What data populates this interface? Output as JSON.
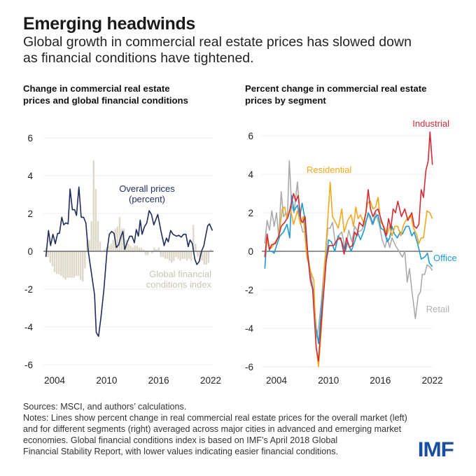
{
  "header": {
    "title": "Emerging headwinds",
    "subtitle_lines": [
      "Global growth in commercial real estate prices has slowed down",
      "as financial conditions have tightened."
    ]
  },
  "footer": {
    "lines": [
      "Sources: MSCI, and authors’ calculations.",
      "Notes: Lines show percent change in real commercial real estate prices for the overall market (left)",
      "and for different segments (right) averaged across major cities in advanced and emerging market",
      "economies. Global financial conditions index is based on IMF’s April 2018 Global",
      "Financial Stability Report, with lower values indicating easier financial conditions."
    ],
    "logo": "IMF"
  },
  "chart_data": [
    {
      "type": "bar+line",
      "title_lines": [
        "Change in commercial real estate",
        "prices and global financial conditions"
      ],
      "xticks": [
        "2004",
        "2010",
        "2016",
        "2022"
      ],
      "yticks": [
        "6",
        "4",
        "2",
        "0",
        "-2",
        "-4",
        "-6"
      ],
      "ylim": [
        -6,
        6
      ],
      "grid": true,
      "series": [
        {
          "name": "Global financial conditions index",
          "kind": "bar",
          "color": "#ddd8c8",
          "x_start": 2003.0,
          "frequency": "quarterly",
          "values": [
            0.2,
            -0.3,
            -0.6,
            -0.8,
            -1.1,
            -1.2,
            -1.2,
            -1.3,
            -1.4,
            -1.5,
            -1.4,
            -1.4,
            -1.4,
            -1.4,
            -1.3,
            -1.3,
            -1.5,
            -1.6,
            -0.9,
            0.6,
            0.6,
            1.6,
            4.8,
            3.3,
            1.6,
            0.5,
            0.0,
            0.1,
            0.2,
            0.3,
            0.4,
            0.6,
            1.2,
            1.3,
            1.8,
            1.2,
            1.2,
            0.6,
            0.4,
            0.3,
            0.2,
            0.3,
            0.3,
            0.2,
            0.2,
            0.1,
            -0.2,
            -0.2,
            0.0,
            -0.1,
            0.2,
            0.1,
            0.2,
            -0.3,
            -0.3,
            -0.4,
            -0.4,
            -0.5,
            -0.6,
            -0.5,
            -0.3,
            -0.4,
            -0.5,
            -0.4,
            -0.4,
            -0.5,
            -0.4,
            -0.5,
            1.4,
            0.4,
            -0.3,
            -0.5,
            -0.5,
            -0.7,
            -0.7,
            -0.6,
            0.1
          ]
        },
        {
          "name": "Overall prices (percent)",
          "label_lines": [
            "Overall prices",
            "(percent)"
          ],
          "kind": "line",
          "color": "#1f2d5c",
          "x": [
            2003.0,
            2003.3,
            2003.54,
            2003.81,
            2004.08,
            2004.35,
            2004.56,
            2004.83,
            2005.05,
            2005.29,
            2005.56,
            2005.78,
            2006.05,
            2006.32,
            2006.53,
            2006.8,
            2007.07,
            2007.34,
            2007.61,
            2007.88,
            2008.2,
            2008.61,
            2008.8,
            2009.07,
            2009.34,
            2009.69,
            2010.04,
            2010.31,
            2010.58,
            2010.85,
            2011.12,
            2011.39,
            2011.66,
            2011.88,
            2012.09,
            2012.39,
            2012.66,
            2012.93,
            2013.2,
            2013.42,
            2013.66,
            2013.87,
            2014.09,
            2014.36,
            2014.63,
            2014.9,
            2015.17,
            2015.44,
            2015.9,
            2016.25,
            2016.63,
            2016.9,
            2017.11,
            2017.38,
            2017.65,
            2018.06,
            2018.33,
            2018.6,
            2018.87,
            2019.14,
            2019.41,
            2019.62,
            2019.89,
            2020.16,
            2020.4,
            2020.67,
            2020.94,
            2021.21,
            2021.43,
            2021.65,
            2021.86,
            2022.19
          ],
          "y": [
            -0.3,
            1.1,
            0.3,
            0.9,
            0.4,
            0.95,
            0.95,
            1.8,
            1.4,
            1.5,
            1.45,
            3.3,
            2.2,
            2.2,
            1.9,
            3.4,
            1.8,
            1.8,
            1.5,
            0,
            -1,
            -2.3,
            -4.3,
            -4.5,
            -3.5,
            -2,
            0,
            0.9,
            1.05,
            0.95,
            0.2,
            0.35,
            0.8,
            1.05,
            0.1,
            0.5,
            0.8,
            0.8,
            0.45,
            1.15,
            0.8,
            1.65,
            0.9,
            1.3,
            1.5,
            2.15,
            1.95,
            1.4,
            1.95,
            1.1,
            0.3,
            0.7,
            0.5,
            1.1,
            0.9,
            0.8,
            0.85,
            0.75,
            0.9,
            0.9,
            0.25,
            0.6,
            0.4,
            -0.4,
            -0.7,
            -0.55,
            0,
            0.3,
            0.85,
            1.35,
            1.45,
            1.1
          ]
        }
      ],
      "index_label_lines": [
        "Global financial",
        "conditions index"
      ]
    },
    {
      "type": "line",
      "title_lines": [
        "Percent change in commercial real estate",
        "prices by segment"
      ],
      "xticks": [
        "2004",
        "2010",
        "2016",
        "2022"
      ],
      "yticks": [
        "6",
        "4",
        "2",
        "0",
        "-2",
        "-4",
        "-6"
      ],
      "ylim": [
        -6,
        6
      ],
      "grid": true,
      "series": [
        {
          "name": "Retail",
          "color": "#aaaaaa",
          "x": [
            2003.0,
            2003.27,
            2003.54,
            2003.81,
            2004.08,
            2004.35,
            2004.62,
            2004.89,
            2005.16,
            2005.43,
            2005.61,
            2005.83,
            2006.1,
            2006.37,
            2006.77,
            2007.12,
            2007.39,
            2007.66,
            2007.99,
            2008.26,
            2008.58,
            2008.93,
            2009.2,
            2009.55,
            2009.93,
            2010.28,
            2010.55,
            2010.82,
            2011.17,
            2011.49,
            2011.89,
            2012.3,
            2012.7,
            2013.05,
            2013.38,
            2013.78,
            2014.19,
            2014.59,
            2014.99,
            2015.4,
            2015.8,
            2016.21,
            2016.56,
            2016.88,
            2017.15,
            2017.42,
            2017.69,
            2018.09,
            2018.5,
            2018.9,
            2019.17,
            2019.44,
            2019.71,
            2019.98,
            2020.39,
            2020.71,
            2020.98,
            2021.19,
            2021.46,
            2021.73,
            2022.06,
            2022.35
          ],
          "y": [
            0.4,
            1.6,
            1.1,
            2.1,
            1.3,
            2.0,
            0.7,
            3.1,
            1.8,
            2.0,
            1.8,
            4.7,
            2.4,
            2.0,
            3.6,
            1.5,
            1.0,
            1.0,
            -0.2,
            -1.0,
            -2.0,
            -4.5,
            -4.0,
            -2.5,
            -0.5,
            1.2,
            1.2,
            1.5,
            0.3,
            0.8,
            1.0,
            0.1,
            1.1,
            0.5,
            1.3,
            1.0,
            1.1,
            1.5,
            1.9,
            1.4,
            2.0,
            1.4,
            0.6,
            0.2,
            0.7,
            0.2,
            0.7,
            0.3,
            0.0,
            -0.3,
            0.0,
            -1.6,
            -0.9,
            -2.0,
            -3.5,
            -2.3,
            -2.1,
            -1.2,
            -1.2,
            -0.7,
            -0.8,
            -1.0
          ]
        },
        {
          "name": "Office",
          "color": "#1b9ad6",
          "x": [
            2003.0,
            2003.27,
            2003.54,
            2003.81,
            2004.08,
            2004.35,
            2004.75,
            2005.16,
            2005.56,
            2005.88,
            2006.1,
            2006.37,
            2006.77,
            2007.04,
            2007.31,
            2007.58,
            2007.99,
            2008.26,
            2008.58,
            2008.93,
            2009.2,
            2009.55,
            2009.93,
            2010.36,
            2010.68,
            2011.09,
            2011.49,
            2011.89,
            2012.3,
            2012.57,
            2012.97,
            2013.38,
            2013.7,
            2014.05,
            2014.46,
            2014.94,
            2015.21,
            2015.48,
            2015.8,
            2016.07,
            2016.4,
            2016.75,
            2017.15,
            2017.42,
            2017.69,
            2017.96,
            2018.31,
            2018.63,
            2018.9,
            2019.31,
            2019.63,
            2019.98,
            2020.25,
            2020.65,
            2021.06,
            2021.46,
            2021.79,
            2022.0,
            2022.35
          ],
          "y": [
            -0.9,
            0.8,
            0.0,
            0.0,
            -0.1,
            0.3,
            0.8,
            1.0,
            1.4,
            0.7,
            2.9,
            2.1,
            2.4,
            1.8,
            2.5,
            1.8,
            -0.3,
            -1.5,
            -2.0,
            -4.0,
            -4.8,
            -3.0,
            -1.0,
            0.6,
            0.5,
            0.0,
            0.8,
            0.5,
            0.0,
            0.5,
            0.0,
            0.5,
            1.0,
            0.6,
            1.1,
            2.0,
            1.8,
            1.4,
            1.8,
            1.9,
            1.2,
            1.1,
            0.5,
            0.7,
            1.3,
            0.9,
            0.7,
            1.0,
            0.9,
            1.3,
            1.3,
            0.8,
            1.0,
            0.4,
            -0.4,
            -0.3,
            -0.1,
            -0.6,
            -0.8
          ]
        },
        {
          "name": "Residential",
          "color": "#f0a91e",
          "x": [
            2003.0,
            2003.27,
            2003.54,
            2003.81,
            2004.21,
            2004.62,
            2005.02,
            2005.29,
            2005.56,
            2005.96,
            2006.32,
            2006.77,
            2007.12,
            2007.45,
            2007.85,
            2008.26,
            2008.66,
            2008.93,
            2009.2,
            2009.55,
            2009.87,
            2010.2,
            2010.55,
            2010.82,
            2011.17,
            2011.49,
            2011.89,
            2012.16,
            2012.57,
            2012.97,
            2013.24,
            2013.51,
            2013.78,
            2014.05,
            2014.46,
            2014.86,
            2015.21,
            2015.48,
            2015.8,
            2016.07,
            2016.4,
            2016.75,
            2017.15,
            2017.42,
            2017.69,
            2018.01,
            2018.36,
            2018.71,
            2019.04,
            2019.44,
            2019.85,
            2020.17,
            2020.52,
            2020.79,
            2021.06,
            2021.33,
            2021.73,
            2022.06,
            2022.35
          ],
          "y": [
            -0.3,
            0.6,
            0.1,
            0.2,
            0.5,
            0.8,
            2.2,
            2.3,
            1.7,
            2.2,
            1.4,
            2.1,
            1.4,
            1.8,
            -0.3,
            -1.0,
            -1.5,
            -5.0,
            -6.0,
            -4.0,
            -1.0,
            1.2,
            3.6,
            1.8,
            1.5,
            1.2,
            2.2,
            1.0,
            1.6,
            1.9,
            1.3,
            2.3,
            1.7,
            1.9,
            1.4,
            2.5,
            2.6,
            2.2,
            2.3,
            2.8,
            1.5,
            1.3,
            0.9,
            1.3,
            0.8,
            1.3,
            1.3,
            0.8,
            1.4,
            1.7,
            1.9,
            1.2,
            0.9,
            0.4,
            0.7,
            0.7,
            2.1,
            2.0,
            1.7
          ]
        },
        {
          "name": "Industrial",
          "color": "#d42a34",
          "x": [
            2003.0,
            2003.27,
            2003.54,
            2003.81,
            2004.21,
            2004.62,
            2004.89,
            2005.29,
            2005.7,
            2005.96,
            2006.32,
            2006.58,
            2006.85,
            2007.18,
            2007.39,
            2007.66,
            2007.99,
            2008.26,
            2008.53,
            2008.93,
            2009.2,
            2009.47,
            2009.74,
            2010.09,
            2010.41,
            2010.68,
            2010.95,
            2011.36,
            2011.76,
            2012.16,
            2012.43,
            2012.78,
            2013.11,
            2013.38,
            2013.65,
            2013.92,
            2014.32,
            2014.67,
            2014.94,
            2015.21,
            2015.48,
            2015.8,
            2016.07,
            2016.4,
            2016.75,
            2017.02,
            2017.29,
            2017.56,
            2017.82,
            2018.09,
            2018.36,
            2018.77,
            2019.17,
            2019.52,
            2019.98,
            2020.25,
            2020.52,
            2020.79,
            2021.06,
            2021.33,
            2021.6,
            2021.87,
            2022.08,
            2022.35
          ],
          "y": [
            -0.3,
            0.9,
            0.1,
            0.35,
            0.4,
            0.8,
            1.3,
            1.5,
            1.8,
            2.3,
            3.0,
            2.6,
            2.9,
            1.6,
            1.5,
            1.8,
            -0.3,
            -1.5,
            -2.0,
            -5.0,
            -5.7,
            -4.0,
            -2.5,
            -0.5,
            0.3,
            0.3,
            0.3,
            0.6,
            0.7,
            -0.15,
            0.7,
            0.2,
            0.3,
            1.0,
            0.8,
            1.5,
            1.3,
            2.0,
            3.2,
            2.2,
            1.8,
            2.1,
            2.2,
            1.7,
            1.2,
            0.8,
            1.7,
            1.2,
            2.2,
            2.0,
            2.6,
            1.8,
            2.2,
            1.6,
            2.0,
            1.3,
            1.2,
            1.4,
            3.2,
            2.8,
            4.2,
            4.7,
            6.2,
            4.5
          ]
        }
      ]
    }
  ]
}
